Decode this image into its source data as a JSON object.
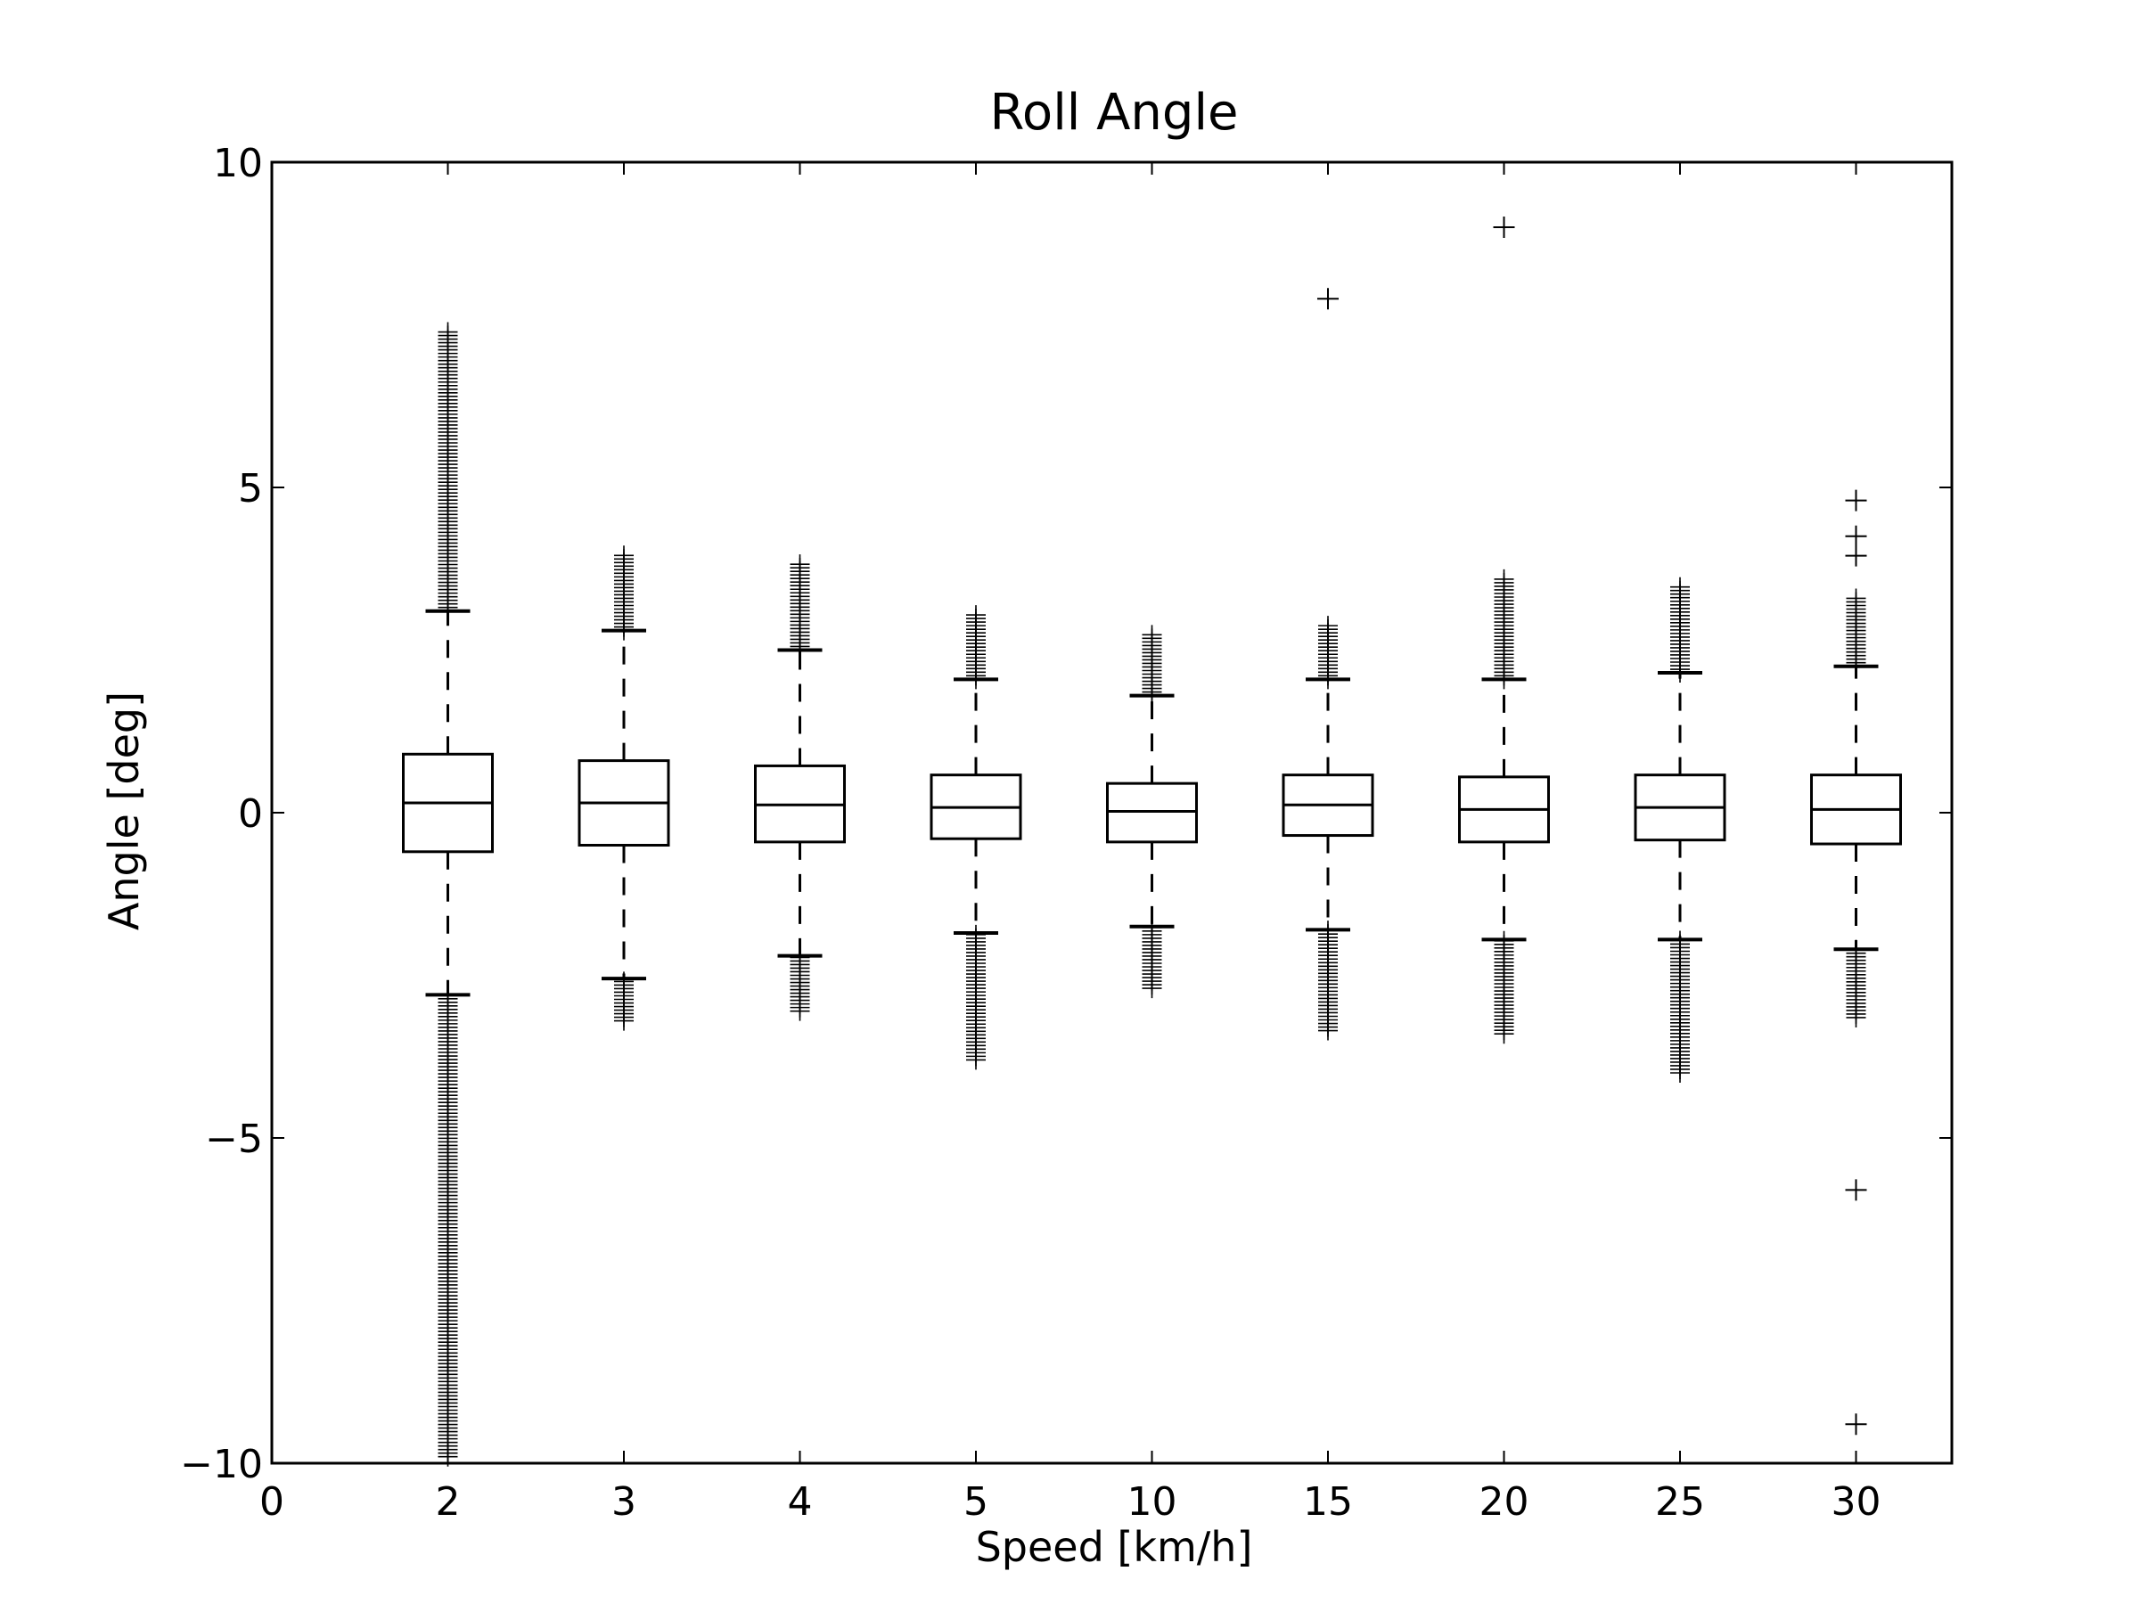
{
  "chart_data": {
    "type": "box",
    "title": "Roll Angle",
    "xlabel": "Speed [km/h]",
    "ylabel": "Angle [deg]",
    "ylim": [
      -10,
      10
    ],
    "y_ticks": [
      -10,
      -5,
      0,
      5,
      10
    ],
    "x_tick_labels": [
      "0",
      "2",
      "3",
      "4",
      "5",
      "10",
      "15",
      "20",
      "25",
      "30"
    ],
    "y_tick_labels": [
      "−10",
      "−5",
      "0",
      "5",
      "10"
    ],
    "grid": false,
    "legend": "none",
    "colors": {
      "line": "#000000",
      "background": "#ffffff"
    },
    "boxes": [
      {
        "category": "2",
        "whisker_low": -2.8,
        "q1": -0.6,
        "median": 0.15,
        "q3": 0.9,
        "whisker_high": 3.1,
        "outlier_low_range": [
          -9.9,
          -2.8
        ],
        "outlier_high_range": [
          3.1,
          7.4
        ],
        "outliers_extra": []
      },
      {
        "category": "3",
        "whisker_low": -2.55,
        "q1": -0.5,
        "median": 0.15,
        "q3": 0.8,
        "whisker_high": 2.8,
        "outlier_low_range": [
          -3.2,
          -2.55
        ],
        "outlier_high_range": [
          2.8,
          4.0
        ],
        "outliers_extra": []
      },
      {
        "category": "4",
        "whisker_low": -2.2,
        "q1": -0.45,
        "median": 0.12,
        "q3": 0.72,
        "whisker_high": 2.5,
        "outlier_low_range": [
          -3.05,
          -2.2
        ],
        "outlier_high_range": [
          2.5,
          3.85
        ],
        "outliers_extra": []
      },
      {
        "category": "5",
        "whisker_low": -1.85,
        "q1": -0.4,
        "median": 0.08,
        "q3": 0.58,
        "whisker_high": 2.05,
        "outlier_low_range": [
          -3.8,
          -1.85
        ],
        "outlier_high_range": [
          2.05,
          3.05
        ],
        "outliers_extra": []
      },
      {
        "category": "10",
        "whisker_low": -1.75,
        "q1": -0.45,
        "median": 0.02,
        "q3": 0.45,
        "whisker_high": 1.8,
        "outlier_low_range": [
          -2.7,
          -1.75
        ],
        "outlier_high_range": [
          1.8,
          2.75
        ],
        "outliers_extra": []
      },
      {
        "category": "15",
        "whisker_low": -1.8,
        "q1": -0.35,
        "median": 0.12,
        "q3": 0.58,
        "whisker_high": 2.05,
        "outlier_low_range": [
          -3.35,
          -1.8
        ],
        "outlier_high_range": [
          2.05,
          2.9
        ],
        "outliers_extra": [
          7.9
        ]
      },
      {
        "category": "20",
        "whisker_low": -1.95,
        "q1": -0.45,
        "median": 0.05,
        "q3": 0.55,
        "whisker_high": 2.05,
        "outlier_low_range": [
          -3.4,
          -1.95
        ],
        "outlier_high_range": [
          2.05,
          3.6
        ],
        "outliers_extra": [
          9.0
        ]
      },
      {
        "category": "25",
        "whisker_low": -1.95,
        "q1": -0.42,
        "median": 0.08,
        "q3": 0.58,
        "whisker_high": 2.15,
        "outlier_low_range": [
          -4.0,
          -1.95
        ],
        "outlier_high_range": [
          2.15,
          3.5
        ],
        "outliers_extra": []
      },
      {
        "category": "30",
        "whisker_low": -2.1,
        "q1": -0.48,
        "median": 0.05,
        "q3": 0.58,
        "whisker_high": 2.25,
        "outlier_low_range": [
          -3.15,
          -2.1
        ],
        "outlier_high_range": [
          2.25,
          3.3
        ],
        "outliers_extra": [
          3.95,
          4.25,
          4.8,
          -5.8,
          -9.4
        ]
      }
    ]
  }
}
